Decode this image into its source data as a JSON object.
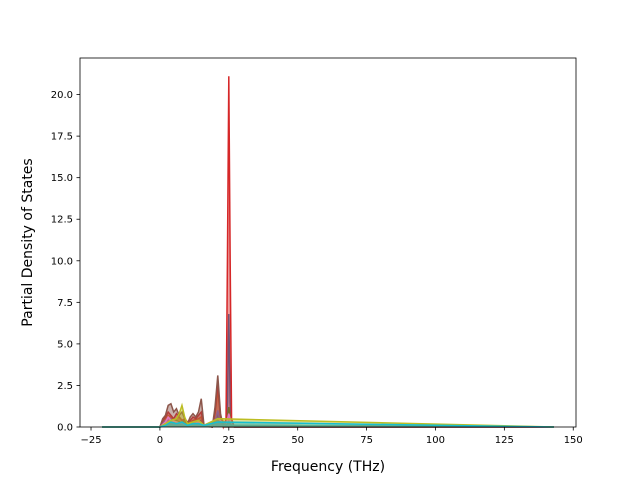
{
  "chart_data": {
    "type": "line",
    "xlabel": "Frequency (THz)",
    "ylabel": "Partial Density of States",
    "xlim": [
      -29,
      151
    ],
    "ylim": [
      0,
      22.2
    ],
    "xticks": [
      -25,
      0,
      25,
      50,
      75,
      100,
      125,
      150
    ],
    "yticks": [
      0.0,
      2.5,
      5.0,
      7.5,
      10.0,
      12.5,
      15.0,
      17.5,
      20.0
    ],
    "xtick_labels": [
      "−25",
      "0",
      "25",
      "50",
      "75",
      "100",
      "125",
      "150"
    ],
    "ytick_labels": [
      "0.0",
      "2.5",
      "5.0",
      "7.5",
      "10.0",
      "12.5",
      "15.0",
      "17.5",
      "20.0"
    ],
    "grid": false,
    "legend": "none",
    "series": [
      {
        "color": "#1f77b4",
        "x": [
          -21,
          0,
          1,
          2,
          3,
          4,
          5,
          6,
          7,
          8,
          9,
          10,
          11,
          12,
          13,
          14,
          15,
          16,
          19,
          20,
          21,
          22,
          23,
          24,
          24.5,
          25,
          25.5,
          26,
          27,
          143
        ],
        "y": [
          0,
          0,
          0.3,
          0.4,
          0.35,
          0.5,
          0.3,
          0.2,
          0.3,
          0.25,
          0.2,
          0.1,
          0.2,
          0.3,
          0.2,
          0.3,
          0.4,
          0.1,
          0,
          0.3,
          0.8,
          0.3,
          0,
          0.1,
          1.5,
          6.8,
          1.5,
          0.1,
          0,
          0
        ]
      },
      {
        "color": "#ff7f0e",
        "x": [
          -21,
          0,
          1,
          2,
          3,
          4,
          5,
          6,
          7,
          8,
          9,
          10,
          12,
          14,
          15,
          16,
          19,
          20,
          21,
          22,
          24,
          25,
          26,
          143
        ],
        "y": [
          0,
          0,
          0.2,
          0.5,
          0.7,
          0.6,
          0.4,
          0.5,
          0.6,
          0.4,
          0.3,
          0.2,
          0.4,
          0.5,
          0.6,
          0.1,
          0,
          0.8,
          2.2,
          0.6,
          0.1,
          0.6,
          0.1,
          0
        ]
      },
      {
        "color": "#2ca02c",
        "x": [
          -21,
          0,
          2,
          4,
          5,
          6,
          7,
          8,
          9,
          10,
          12,
          14,
          16,
          20,
          21,
          22,
          24,
          25,
          26,
          143
        ],
        "y": [
          0,
          0,
          0.2,
          0.3,
          0.2,
          0.4,
          0.3,
          0.2,
          0.5,
          0.1,
          0.2,
          0.3,
          0.1,
          0.2,
          0.6,
          0.2,
          0.1,
          1.2,
          0.1,
          0
        ]
      },
      {
        "color": "#d62728",
        "x": [
          -21,
          0,
          1,
          2,
          3,
          4,
          5,
          6,
          7,
          8,
          9,
          10,
          11,
          12,
          13,
          14,
          15,
          16,
          19,
          20,
          21,
          22,
          23,
          24,
          24.5,
          25,
          25.5,
          26,
          27,
          143
        ],
        "y": [
          0,
          0,
          0.4,
          0.6,
          0.9,
          0.7,
          0.5,
          0.8,
          0.6,
          0.4,
          0.5,
          0.3,
          0.4,
          0.6,
          0.5,
          0.7,
          0.9,
          0.1,
          0,
          0.9,
          2.6,
          0.6,
          0,
          0.5,
          10.0,
          21.1,
          10.0,
          0.5,
          0,
          0
        ]
      },
      {
        "color": "#9467bd",
        "x": [
          -21,
          0,
          1,
          2,
          3,
          4,
          5,
          6,
          8,
          10,
          12,
          14,
          16,
          20,
          21,
          22,
          24,
          25,
          26,
          143
        ],
        "y": [
          0,
          0,
          0.2,
          0.4,
          0.3,
          0.5,
          0.3,
          0.2,
          0.3,
          0.1,
          0.3,
          0.4,
          0.1,
          0.3,
          1.0,
          0.2,
          0.1,
          0.6,
          0.1,
          0
        ]
      },
      {
        "color": "#8c564b",
        "x": [
          -21,
          0,
          1,
          2,
          3,
          4,
          5,
          6,
          7,
          8,
          9,
          10,
          11,
          12,
          13,
          14,
          15,
          16,
          19,
          20,
          21,
          22,
          23,
          143
        ],
        "y": [
          0,
          0,
          0.5,
          0.7,
          1.3,
          1.4,
          0.9,
          1.1,
          0.7,
          0.9,
          0.5,
          0.2,
          0.6,
          0.8,
          0.6,
          0.9,
          1.7,
          0.1,
          0,
          1.2,
          3.1,
          0.8,
          0,
          0
        ]
      },
      {
        "color": "#e377c2",
        "x": [
          -21,
          0,
          2,
          3,
          4,
          6,
          8,
          10,
          12,
          14,
          16,
          21,
          24,
          25,
          26,
          143
        ],
        "y": [
          0,
          0,
          0.3,
          0.6,
          0.4,
          0.3,
          0.2,
          0.1,
          0.2,
          0.3,
          0.1,
          0.5,
          0.1,
          0.8,
          0.1,
          0
        ]
      },
      {
        "color": "#7f7f7f",
        "x": [
          -21,
          0,
          2,
          4,
          6,
          8,
          10,
          12,
          14,
          16,
          21,
          24,
          25,
          26,
          143
        ],
        "y": [
          0,
          0,
          0.2,
          0.3,
          0.2,
          0.3,
          0.1,
          0.2,
          0.2,
          0.1,
          0.4,
          0.1,
          0.3,
          0.1,
          0
        ]
      },
      {
        "color": "#bcbd22",
        "x": [
          -21,
          0,
          2,
          4,
          6,
          7,
          8,
          9,
          10,
          12,
          14,
          16,
          21,
          143
        ],
        "y": [
          0,
          0,
          0.2,
          0.4,
          0.5,
          0.8,
          1.3,
          0.6,
          0.2,
          0.3,
          0.4,
          0.1,
          0.5,
          0
        ]
      },
      {
        "color": "#17becf",
        "x": [
          -21,
          0,
          2,
          4,
          6,
          8,
          10,
          12,
          14,
          16,
          21,
          143
        ],
        "y": [
          0,
          0,
          0.1,
          0.3,
          0.2,
          0.3,
          0.1,
          0.2,
          0.2,
          0.1,
          0.3,
          0
        ]
      }
    ]
  }
}
